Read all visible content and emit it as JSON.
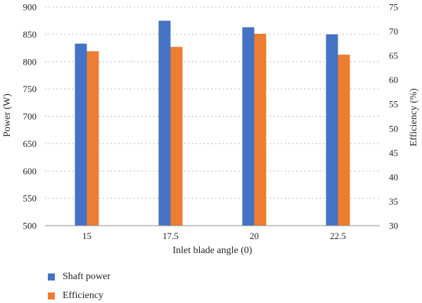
{
  "chart_data": {
    "type": "bar",
    "categories": [
      "15",
      "17.5",
      "20",
      "22.5"
    ],
    "xlabel": "Inlet blade angle (0)",
    "ylabel": "Power (W)",
    "y2label": "Efficiency (%)",
    "ylim": [
      500,
      900
    ],
    "y_ticks": [
      "500",
      "550",
      "600",
      "650",
      "700",
      "750",
      "800",
      "850",
      "900"
    ],
    "y2lim": [
      30,
      75
    ],
    "y2_ticks": [
      "30",
      "35",
      "40",
      "45",
      "50",
      "55",
      "60",
      "65",
      "70",
      "75"
    ],
    "grid": "horizontal dotted",
    "legend_position": "bottom-left",
    "series": [
      {
        "name": "Shaft power",
        "axis": "left",
        "color": "#4472c4",
        "values": [
          833,
          875,
          863,
          850
        ]
      },
      {
        "name": "Efficiency",
        "axis": "right",
        "color": "#ed7d31",
        "values": [
          65.9,
          66.8,
          69.5,
          65.2
        ]
      }
    ]
  }
}
